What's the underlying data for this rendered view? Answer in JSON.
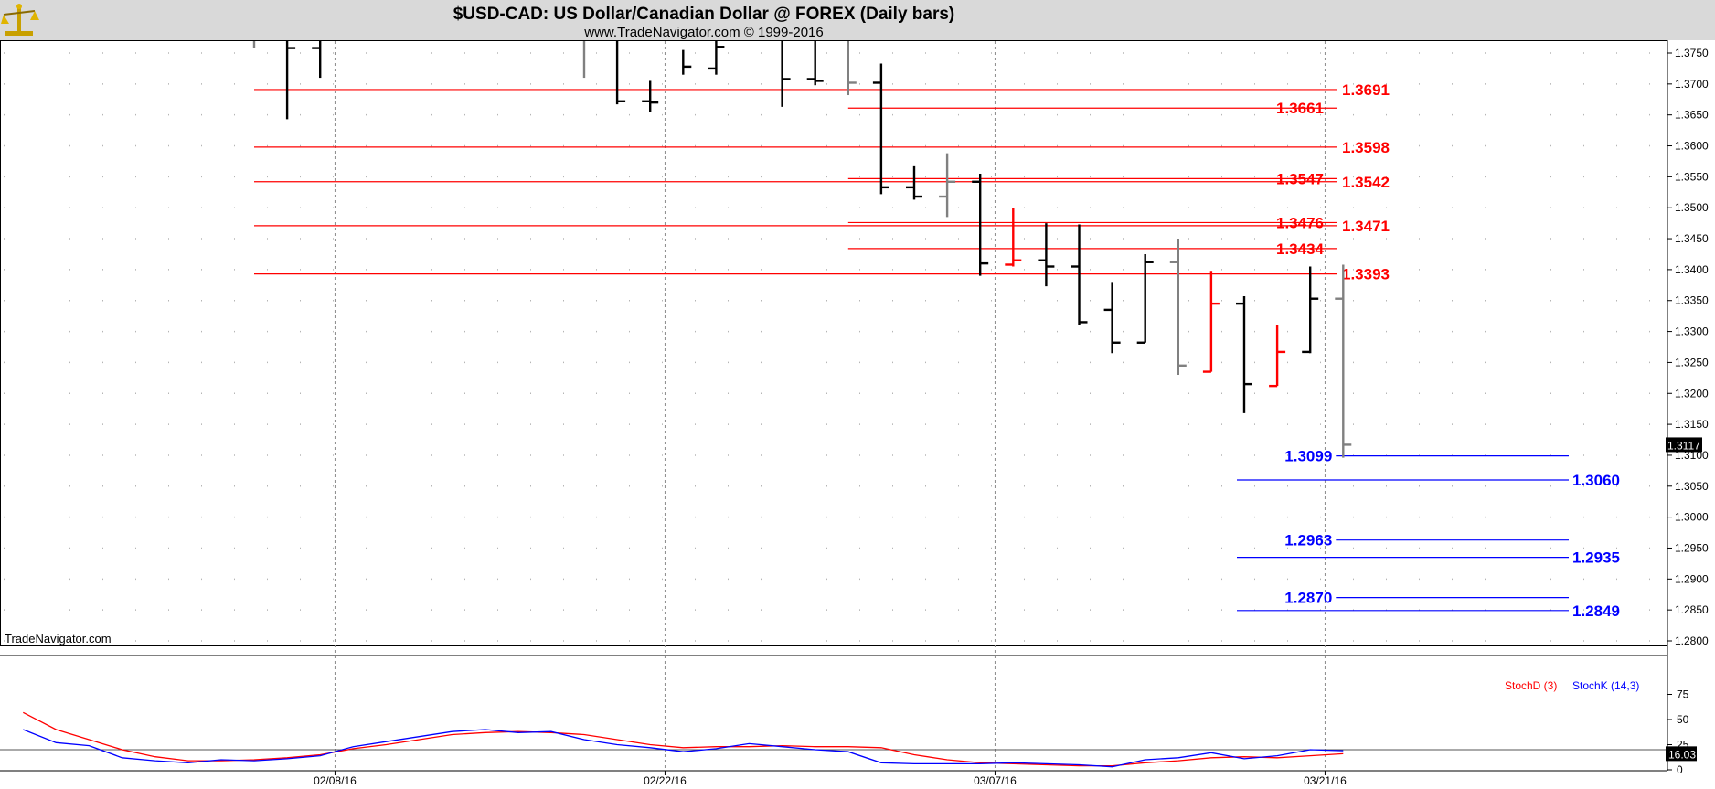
{
  "header": {
    "title": "$USD-CAD:  US Dollar/Canadian Dollar @ FOREX  (Daily bars)",
    "subtitle": "www.TradeNavigator.com © 1999-2016",
    "watermark": "TradeNavigator.com",
    "logo_icon": "scales-logo-icon"
  },
  "colors": {
    "resistance": "#ff0000",
    "support": "#0000ff",
    "bar_black": "#000000",
    "bar_gray": "#808080",
    "bar_red": "#ff0000",
    "stoch_d": "#ff0000",
    "stoch_k": "#0000ff",
    "header_bg": "#d9d9d9"
  },
  "chart_data": [
    {
      "type": "ohlc",
      "title": "$USD-CAD:  US Dollar/Canadian Dollar @ FOREX  (Daily bars)",
      "x_ticks": [
        "02/08/16",
        "02/22/16",
        "03/07/16",
        "03/21/16"
      ],
      "ylim": [
        1.278,
        1.377
      ],
      "y_ticks": [
        "1.3750",
        "1.3700",
        "1.3650",
        "1.3600",
        "1.3550",
        "1.3500",
        "1.3450",
        "1.3400",
        "1.3350",
        "1.3300",
        "1.3250",
        "1.3200",
        "1.3150",
        "1.3100",
        "1.3050",
        "1.3000",
        "1.2950",
        "1.2900",
        "1.2850",
        "1.2800"
      ],
      "grid": true,
      "last_price": "1.3117",
      "bars": [
        {
          "i": 0,
          "o": null,
          "h": 1.377,
          "l": 1.3758,
          "c": null,
          "color": "gray"
        },
        {
          "i": 1,
          "o": null,
          "h": 1.377,
          "l": 1.3643,
          "c": 1.3758,
          "color": "black"
        },
        {
          "i": 2,
          "o": 1.3758,
          "h": 1.377,
          "l": 1.371,
          "c": null,
          "color": "black"
        },
        {
          "i": 10,
          "o": null,
          "h": 1.377,
          "l": 1.371,
          "c": null,
          "color": "gray"
        },
        {
          "i": 11,
          "o": null,
          "h": 1.377,
          "l": 1.3667,
          "c": 1.3672,
          "color": "black"
        },
        {
          "i": 12,
          "o": 1.3672,
          "h": 1.3705,
          "l": 1.3655,
          "c": 1.367,
          "color": "black"
        },
        {
          "i": 13,
          "o": null,
          "h": 1.3755,
          "l": 1.3715,
          "c": 1.3728,
          "color": "black"
        },
        {
          "i": 14,
          "o": 1.3725,
          "h": 1.377,
          "l": 1.3715,
          "c": 1.376,
          "color": "black"
        },
        {
          "i": 16,
          "o": null,
          "h": 1.377,
          "l": 1.3663,
          "c": 1.3708,
          "color": "black"
        },
        {
          "i": 17,
          "o": 1.3708,
          "h": 1.377,
          "l": 1.3698,
          "c": 1.3705,
          "color": "black"
        },
        {
          "i": 18,
          "o": null,
          "h": 1.377,
          "l": 1.3682,
          "c": 1.3702,
          "color": "gray"
        },
        {
          "i": 19,
          "o": 1.3702,
          "h": 1.3733,
          "l": 1.3522,
          "c": 1.3533,
          "color": "black"
        },
        {
          "i": 20,
          "o": 1.3533,
          "h": 1.3567,
          "l": 1.3513,
          "c": 1.3518,
          "color": "black"
        },
        {
          "i": 21,
          "o": 1.3518,
          "h": 1.3588,
          "l": 1.3485,
          "c": 1.3542,
          "color": "gray"
        },
        {
          "i": 22,
          "o": 1.3542,
          "h": 1.3555,
          "l": 1.339,
          "c": 1.341,
          "color": "black"
        },
        {
          "i": 23,
          "o": 1.3408,
          "h": 1.35,
          "l": 1.3405,
          "c": 1.3415,
          "color": "red"
        },
        {
          "i": 24,
          "o": 1.3415,
          "h": 1.3475,
          "l": 1.3373,
          "c": 1.3405,
          "color": "black"
        },
        {
          "i": 25,
          "o": 1.3405,
          "h": 1.3473,
          "l": 1.331,
          "c": 1.3315,
          "color": "black"
        },
        {
          "i": 26,
          "o": 1.3335,
          "h": 1.338,
          "l": 1.3265,
          "c": 1.3282,
          "color": "black"
        },
        {
          "i": 27,
          "o": 1.3282,
          "h": 1.3425,
          "l": 1.3282,
          "c": 1.3412,
          "color": "black"
        },
        {
          "i": 28,
          "o": 1.3412,
          "h": 1.345,
          "l": 1.323,
          "c": 1.3245,
          "color": "gray"
        },
        {
          "i": 29,
          "o": 1.3235,
          "h": 1.3398,
          "l": 1.3235,
          "c": 1.3345,
          "color": "red"
        },
        {
          "i": 30,
          "o": 1.3345,
          "h": 1.3357,
          "l": 1.3168,
          "c": 1.3215,
          "color": "black"
        },
        {
          "i": 31,
          "o": 1.3212,
          "h": 1.331,
          "l": 1.3212,
          "c": 1.3267,
          "color": "red"
        },
        {
          "i": 32,
          "o": 1.3267,
          "h": 1.3405,
          "l": 1.3265,
          "c": 1.3353,
          "color": "black"
        },
        {
          "i": 33,
          "o": 1.3353,
          "h": 1.3408,
          "l": 1.3096,
          "c": 1.3117,
          "color": "gray"
        }
      ],
      "levels": [
        {
          "label": "1.3691",
          "value": 1.3691,
          "color": "red",
          "from": 0,
          "label_side": "right"
        },
        {
          "label": "1.3661",
          "value": 1.3661,
          "color": "red",
          "from": 18,
          "label_side": "right"
        },
        {
          "label": "1.3598",
          "value": 1.3598,
          "color": "red",
          "from": 0,
          "label_side": "right"
        },
        {
          "label": "1.3547",
          "value": 1.3547,
          "color": "red",
          "from": 18,
          "label_side": "right"
        },
        {
          "label": "1.3542",
          "value": 1.3542,
          "color": "red",
          "from": 0,
          "label_side": "right"
        },
        {
          "label": "1.3476",
          "value": 1.3476,
          "color": "red",
          "from": 18,
          "label_side": "right"
        },
        {
          "label": "1.3471",
          "value": 1.3471,
          "color": "red",
          "from": 0,
          "label_side": "right"
        },
        {
          "label": "1.3434",
          "value": 1.3434,
          "color": "red",
          "from": 18,
          "label_side": "right"
        },
        {
          "label": "1.3393",
          "value": 1.3393,
          "color": "red",
          "from": 0,
          "label_side": "right"
        },
        {
          "label": "1.3099",
          "value": 1.3099,
          "color": "blue",
          "from": 33,
          "label_side": "left"
        },
        {
          "label": "1.3060",
          "value": 1.306,
          "color": "blue",
          "from": 30,
          "label_side": "right"
        },
        {
          "label": "1.2963",
          "value": 1.2963,
          "color": "blue",
          "from": 33,
          "label_side": "left"
        },
        {
          "label": "1.2935",
          "value": 1.2935,
          "color": "blue",
          "from": 30,
          "label_side": "right"
        },
        {
          "label": "1.2870",
          "value": 1.287,
          "color": "blue",
          "from": 33,
          "label_side": "left"
        },
        {
          "label": "1.2849",
          "value": 1.2849,
          "color": "blue",
          "from": 30,
          "label_side": "right"
        }
      ]
    },
    {
      "type": "line",
      "ylim": [
        0,
        100
      ],
      "y_ticks": [
        "75",
        "50",
        "25",
        "0"
      ],
      "reference_line": 20,
      "last_value": "16.03",
      "series": [
        {
          "name": "StochD (3)",
          "color": "red",
          "points": [
            [
              -7,
              57
            ],
            [
              -6,
              40
            ],
            [
              -5,
              30
            ],
            [
              -4,
              20
            ],
            [
              -3,
              13
            ],
            [
              -2,
              9
            ],
            [
              -1,
              9
            ],
            [
              0,
              10
            ],
            [
              1,
              12
            ],
            [
              2,
              15
            ],
            [
              3,
              21
            ],
            [
              4,
              25
            ],
            [
              5,
              30
            ],
            [
              6,
              35
            ],
            [
              7,
              37
            ],
            [
              8,
              38
            ],
            [
              9,
              37
            ],
            [
              10,
              35
            ],
            [
              11,
              30
            ],
            [
              12,
              25
            ],
            [
              13,
              22
            ],
            [
              14,
              23
            ],
            [
              15,
              23
            ],
            [
              16,
              24
            ],
            [
              17,
              23
            ],
            [
              18,
              23
            ],
            [
              19,
              22
            ],
            [
              20,
              15
            ],
            [
              21,
              10
            ],
            [
              22,
              7
            ],
            [
              23,
              6
            ],
            [
              24,
              5
            ],
            [
              25,
              4
            ],
            [
              26,
              4
            ],
            [
              27,
              7
            ],
            [
              28,
              9
            ],
            [
              29,
              12
            ],
            [
              30,
              13
            ],
            [
              31,
              12
            ],
            [
              32,
              14
            ],
            [
              33,
              16
            ]
          ]
        },
        {
          "name": "StochK (14,3)",
          "color": "blue",
          "points": [
            [
              -7,
              40
            ],
            [
              -6,
              27
            ],
            [
              -5,
              24
            ],
            [
              -4,
              12
            ],
            [
              -3,
              9
            ],
            [
              -2,
              7
            ],
            [
              -1,
              10
            ],
            [
              0,
              9
            ],
            [
              1,
              11
            ],
            [
              2,
              14
            ],
            [
              3,
              23
            ],
            [
              4,
              28
            ],
            [
              5,
              33
            ],
            [
              6,
              38
            ],
            [
              7,
              40
            ],
            [
              8,
              37
            ],
            [
              9,
              38
            ],
            [
              10,
              30
            ],
            [
              11,
              25
            ],
            [
              12,
              22
            ],
            [
              13,
              18
            ],
            [
              14,
              21
            ],
            [
              15,
              26
            ],
            [
              16,
              23
            ],
            [
              17,
              20
            ],
            [
              18,
              18
            ],
            [
              19,
              7
            ],
            [
              20,
              6
            ],
            [
              21,
              6
            ],
            [
              22,
              6
            ],
            [
              23,
              7
            ],
            [
              24,
              6
            ],
            [
              25,
              5
            ],
            [
              26,
              3
            ],
            [
              27,
              10
            ],
            [
              28,
              12
            ],
            [
              29,
              17
            ],
            [
              30,
              11
            ],
            [
              31,
              14
            ],
            [
              32,
              20
            ],
            [
              33,
              19
            ]
          ]
        }
      ]
    }
  ]
}
